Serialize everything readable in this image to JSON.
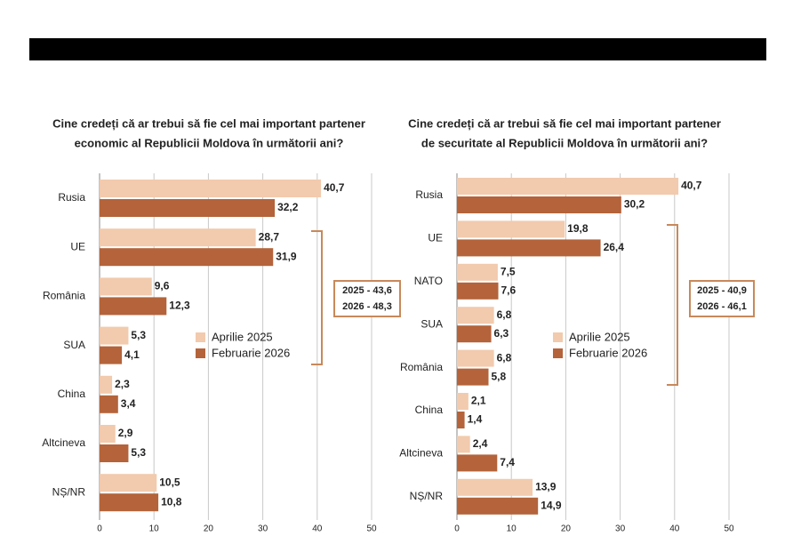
{
  "chart_data": [
    {
      "type": "hbar",
      "title": [
        "Cine credeți că ar trebui să fie cel mai important partener",
        "economic al Republicii Moldova în următorii ani?"
      ],
      "categories": [
        "Rusia",
        "UE",
        "România",
        "SUA",
        "China",
        "Altcineva",
        "NȘ/NR"
      ],
      "series": [
        {
          "name": "Aprilie 2025",
          "color": "#f2caad",
          "values": [
            40.7,
            28.7,
            9.6,
            5.3,
            2.3,
            2.9,
            10.5
          ],
          "value_labels": [
            "40,7",
            "28,7",
            "9,6",
            "5,3",
            "2,3",
            "2,9",
            "10,5"
          ]
        },
        {
          "name": "Februarie 2026",
          "color": "#b4633a",
          "values": [
            32.2,
            31.9,
            12.3,
            4.1,
            3.4,
            5.3,
            10.8
          ],
          "value_labels": [
            "32,2",
            "31,9",
            "12,3",
            "4,1",
            "3,4",
            "5,3",
            "10,8"
          ]
        }
      ],
      "xlim": [
        0,
        50
      ],
      "xticks": [
        0,
        10,
        20,
        30,
        40,
        50
      ],
      "grid": true,
      "annotations": [
        "2025 - 43,6",
        "2026 - 48,3"
      ]
    },
    {
      "type": "hbar",
      "title": [
        "Cine credeți că ar trebui să fie cel mai important partener",
        "de securitate al Republicii Moldova în următorii ani?"
      ],
      "categories": [
        "Rusia",
        "UE",
        "NATO",
        "SUA",
        "România",
        "China",
        "Altcineva",
        "NȘ/NR"
      ],
      "series": [
        {
          "name": "Aprilie 2025",
          "color": "#f2caad",
          "values": [
            40.7,
            19.8,
            7.5,
            6.8,
            6.8,
            2.1,
            2.4,
            13.9
          ],
          "value_labels": [
            "40,7",
            "19,8",
            "7,5",
            "6,8",
            "6,8",
            "2,1",
            "2,4",
            "13,9"
          ]
        },
        {
          "name": "Februarie 2026",
          "color": "#b4633a",
          "values": [
            30.2,
            26.4,
            7.6,
            6.3,
            5.8,
            1.4,
            7.4,
            14.9
          ],
          "value_labels": [
            "30,2",
            "26,4",
            "7,6",
            "6,3",
            "5,8",
            "1,4",
            "7,4",
            "14,9"
          ]
        }
      ],
      "xlim": [
        0,
        50
      ],
      "xticks": [
        0,
        10,
        20,
        30,
        40,
        50
      ],
      "grid": true,
      "annotations": [
        "2025 - 40,9",
        "2026 - 46,1"
      ]
    }
  ]
}
